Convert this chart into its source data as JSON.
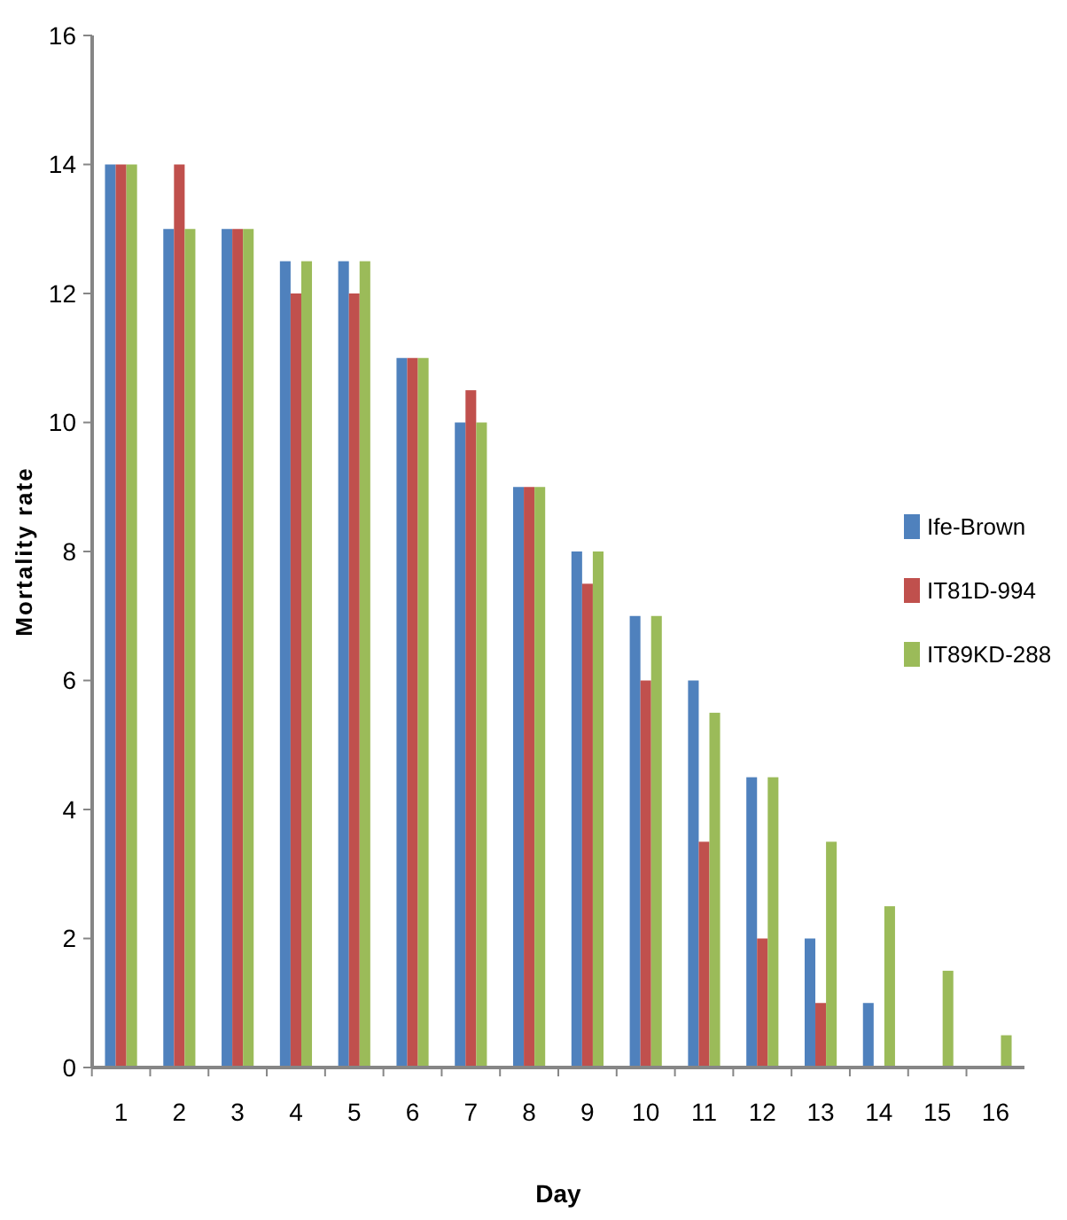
{
  "chart_data": {
    "type": "bar",
    "xlabel": "Day",
    "ylabel": "Mortality rate",
    "categories": [
      "1",
      "2",
      "3",
      "4",
      "5",
      "6",
      "7",
      "8",
      "9",
      "10",
      "11",
      "12",
      "13",
      "14",
      "15",
      "16"
    ],
    "series": [
      {
        "name": "Ife-Brown",
        "color": "#4f81bd",
        "values": [
          14,
          13,
          13,
          12.5,
          12.5,
          11,
          10,
          9,
          8,
          7,
          6,
          4.5,
          2,
          1,
          0,
          0
        ]
      },
      {
        "name": "IT81D-994",
        "color": "#c0504d",
        "values": [
          14,
          14,
          13,
          12,
          12,
          11,
          10.5,
          9,
          7.5,
          6,
          3.5,
          2,
          1,
          0,
          0,
          0
        ]
      },
      {
        "name": "IT89KD-288",
        "color": "#9bbb59",
        "values": [
          14,
          13,
          13,
          12.5,
          12.5,
          11,
          10,
          9,
          8,
          7,
          5.5,
          4.5,
          3.5,
          2.5,
          1.5,
          0.5
        ]
      }
    ],
    "ylim": [
      0,
      16
    ],
    "yticks": [
      0,
      2,
      4,
      6,
      8,
      10,
      12,
      14,
      16
    ],
    "grid": false,
    "legend": "right"
  }
}
